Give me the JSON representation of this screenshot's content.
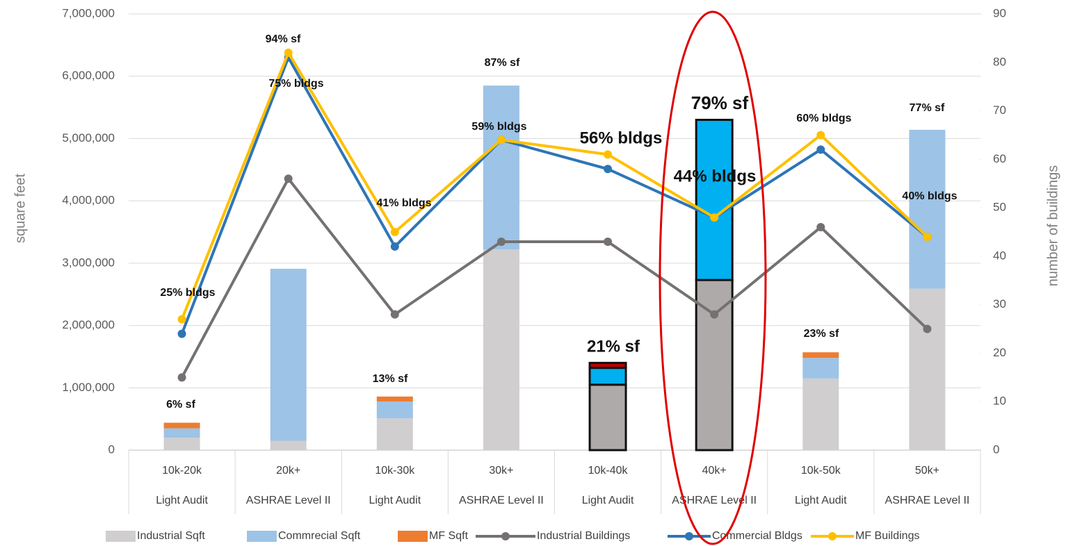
{
  "chart_data": {
    "type": "combo",
    "categories": [
      "10k-20k",
      "20k+",
      "10k-30k",
      "30k+",
      "10k-40k",
      "40k+",
      "10k-50k",
      "50k+"
    ],
    "groups": [
      "Light Audit",
      "ASHRAE Level II",
      "Light Audit",
      "ASHRAE Level II",
      "Light Audit",
      "ASHRAE Level II",
      "Light Audit",
      "ASHRAE Level II"
    ],
    "ylabel": "square feet",
    "y2label": "number of buildings",
    "ylim": [
      0,
      7000000
    ],
    "yticks": [
      0,
      {
        "value": 1000000,
        "label": "1,000,000"
      },
      {
        "value": 2000000,
        "label": "2,000,000"
      },
      {
        "value": 3000000,
        "label": "3,000,000"
      },
      {
        "value": 4000000,
        "label": "4,000,000"
      },
      {
        "value": 5000000,
        "label": "5,000,000"
      },
      {
        "value": 6000000,
        "label": "6,000,000"
      },
      {
        "value": 7000000,
        "label": "7,000,000"
      }
    ],
    "y2lim": [
      0,
      90
    ],
    "y2ticks": [
      0,
      10,
      20,
      30,
      40,
      50,
      60,
      70,
      80,
      90
    ],
    "grid": true,
    "legend": "bottom",
    "highlight": [
      4,
      5
    ],
    "series": [
      {
        "name": "Industrial Sqft",
        "type": "bar",
        "color": "#d0cece",
        "highlight_color": "#aeaaaa",
        "values": [
          200000,
          150000,
          510000,
          3220000,
          1050000,
          2730000,
          1150000,
          2590000
        ]
      },
      {
        "name": "Commrecial Sqft",
        "type": "bar",
        "color": "#9dc3e6",
        "highlight_color": "#00b0f0",
        "values": [
          150000,
          2760000,
          270000,
          2630000,
          270000,
          2570000,
          330000,
          2550000
        ]
      },
      {
        "name": "MF Sqft",
        "type": "bar",
        "color": "#ed7d31",
        "highlight_color": "#c00000",
        "values": [
          90000,
          0,
          80000,
          0,
          80000,
          0,
          90000,
          0
        ]
      },
      {
        "name": "Industrial Buildings",
        "type": "line",
        "axis": "y2",
        "color": "#757171",
        "values": [
          15,
          56,
          28,
          43,
          43,
          28,
          46,
          25
        ]
      },
      {
        "name": "Commercial Bldgs",
        "type": "line",
        "axis": "y2",
        "color": "#2e75b6",
        "values": [
          24,
          81,
          42,
          64,
          58,
          48,
          62,
          44
        ]
      },
      {
        "name": "MF Buildings",
        "type": "line",
        "axis": "y2",
        "color": "#ffc000",
        "values": [
          27,
          82,
          45,
          64,
          61,
          48,
          65,
          44
        ]
      }
    ],
    "annotations": [
      "6% sf",
      "25% bldgs",
      "94% sf",
      "75% bldgs",
      "13% sf",
      "41% bldgs",
      "87% sf",
      "59% bldgs",
      "21% sf",
      "56% bldgs",
      "79% sf",
      "44% bldgs",
      "23% sf",
      "60% bldgs",
      "77% sf",
      "40% bldgs"
    ]
  }
}
